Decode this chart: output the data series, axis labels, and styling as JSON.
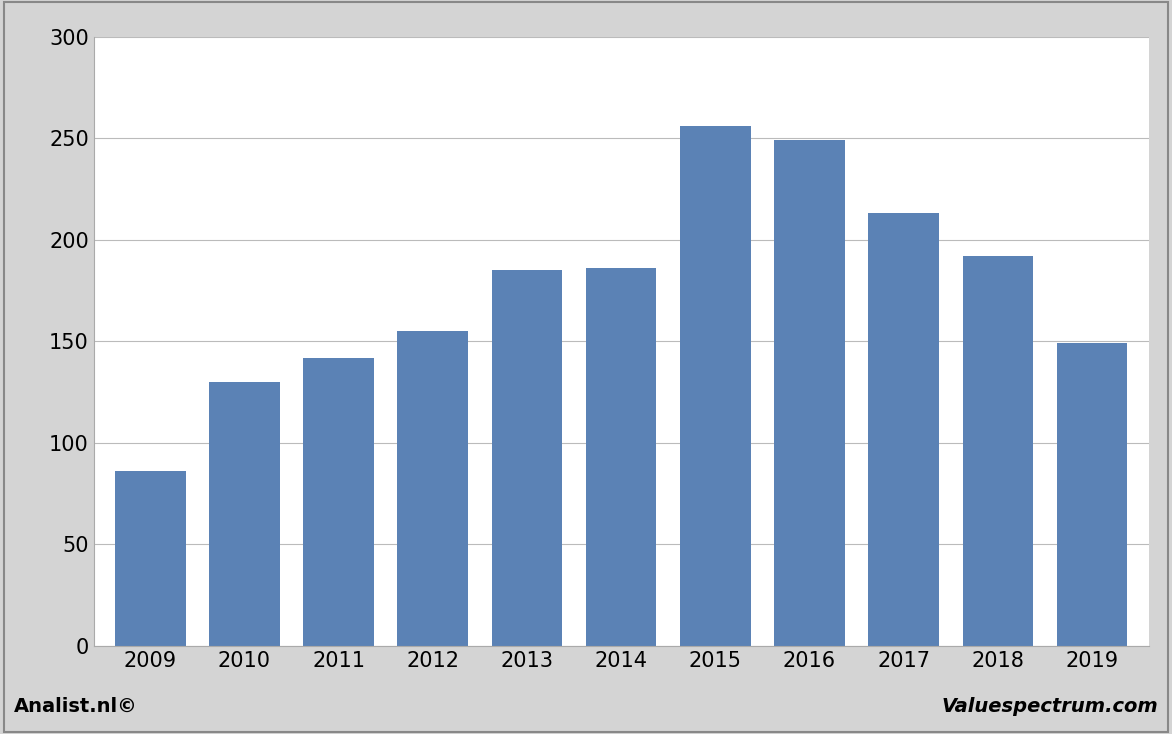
{
  "categories": [
    "2009",
    "2010",
    "2011",
    "2012",
    "2013",
    "2014",
    "2015",
    "2016",
    "2017",
    "2018",
    "2019"
  ],
  "values": [
    86,
    130,
    142,
    155,
    185,
    186,
    256,
    249,
    213,
    192,
    149
  ],
  "bar_color": "#5b82b5",
  "ylim": [
    0,
    300
  ],
  "yticks": [
    0,
    50,
    100,
    150,
    200,
    250,
    300
  ],
  "background_color": "#d4d4d4",
  "plot_bg_color": "#ffffff",
  "grid_color": "#bbbbbb",
  "footer_left": "Analist.nl©",
  "footer_right": "Valuespectrum.com",
  "footer_fontsize": 14,
  "bar_width": 0.75,
  "tick_fontsize": 15
}
